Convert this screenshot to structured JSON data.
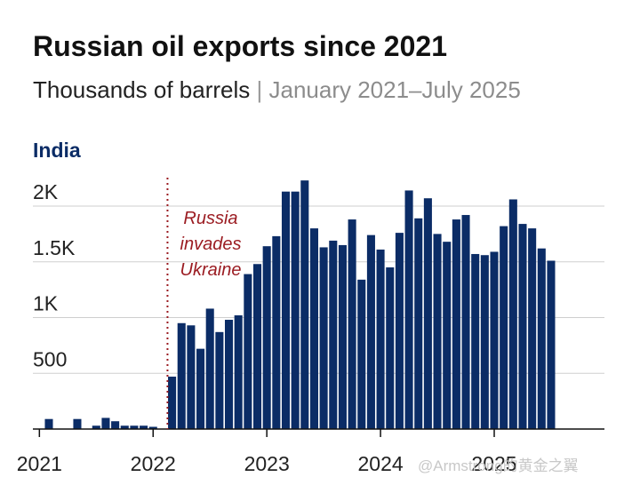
{
  "header": {
    "title": "Russian oil exports since 2021",
    "subtitle_unit": "Thousands of barrels",
    "subtitle_sep": "|",
    "subtitle_range": "January 2021–July 2025"
  },
  "watermark": "@Armstrong的黄金之翼",
  "chart_data": {
    "type": "bar",
    "panel": "India",
    "bar_color": "#0b2c66",
    "annotation": {
      "lines": [
        "Russia",
        "invades",
        "Ukraine"
      ],
      "at": "2022-03",
      "color": "#9b1c22"
    },
    "yticks": [
      {
        "value": 500,
        "label": "500"
      },
      {
        "value": 1000,
        "label": "1K"
      },
      {
        "value": 1500,
        "label": "1.5K"
      },
      {
        "value": 2000,
        "label": "2K"
      }
    ],
    "ylim": [
      0,
      2200
    ],
    "xticks": [
      {
        "label": "2021",
        "at": "2021-01"
      },
      {
        "label": "2022",
        "at": "2022-01"
      },
      {
        "label": "2023",
        "at": "2023-01"
      },
      {
        "label": "2024",
        "at": "2024-01"
      },
      {
        "label": "2025",
        "at": "2025-01"
      }
    ],
    "categories": [
      "2021-01",
      "2021-02",
      "2021-03",
      "2021-04",
      "2021-05",
      "2021-06",
      "2021-07",
      "2021-08",
      "2021-09",
      "2021-10",
      "2021-11",
      "2021-12",
      "2022-01",
      "2022-02",
      "2022-03",
      "2022-04",
      "2022-05",
      "2022-06",
      "2022-07",
      "2022-08",
      "2022-09",
      "2022-10",
      "2022-11",
      "2022-12",
      "2023-01",
      "2023-02",
      "2023-03",
      "2023-04",
      "2023-05",
      "2023-06",
      "2023-07",
      "2023-08",
      "2023-09",
      "2023-10",
      "2023-11",
      "2023-12",
      "2024-01",
      "2024-02",
      "2024-03",
      "2024-04",
      "2024-05",
      "2024-06",
      "2024-07",
      "2024-08",
      "2024-09",
      "2024-10",
      "2024-11",
      "2024-12",
      "2025-01",
      "2025-02",
      "2025-03",
      "2025-04",
      "2025-05",
      "2025-06",
      "2025-07"
    ],
    "values": [
      0,
      90,
      0,
      0,
      90,
      0,
      30,
      100,
      70,
      30,
      30,
      30,
      20,
      0,
      470,
      950,
      930,
      720,
      1080,
      870,
      980,
      1020,
      1390,
      1480,
      1640,
      1730,
      2130,
      2130,
      2230,
      1800,
      1630,
      1690,
      1650,
      1880,
      1340,
      1740,
      1610,
      1450,
      1760,
      2140,
      1890,
      2070,
      1750,
      1680,
      1880,
      1920,
      1570,
      1560,
      1590,
      1820,
      2060,
      1840,
      1800,
      1620,
      1510
    ]
  }
}
